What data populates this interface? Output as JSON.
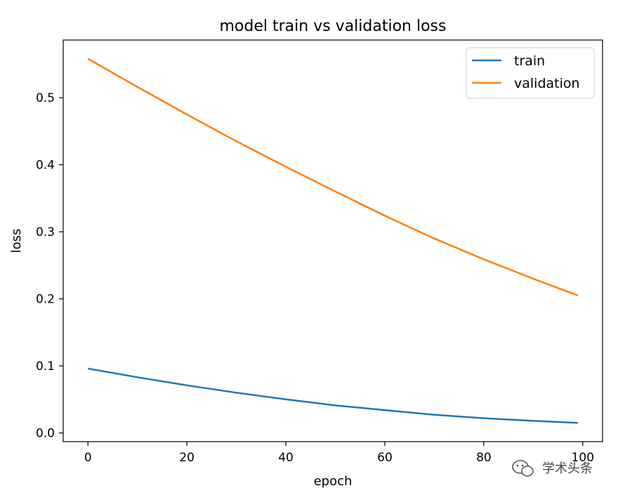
{
  "chart_data": {
    "type": "line",
    "title": "model train vs validation loss",
    "xlabel": "epoch",
    "ylabel": "loss",
    "xlim": [
      -5,
      104
    ],
    "ylim": [
      -0.013,
      0.586
    ],
    "xticks": [
      0,
      20,
      40,
      60,
      80,
      100
    ],
    "yticks": [
      0.0,
      0.1,
      0.2,
      0.3,
      0.4,
      0.5
    ],
    "xtick_labels": [
      "0",
      "20",
      "40",
      "60",
      "80",
      "100"
    ],
    "ytick_labels": [
      "0.0",
      "0.1",
      "0.2",
      "0.3",
      "0.4",
      "0.5"
    ],
    "legend_position": "top-right",
    "grid": false,
    "series": [
      {
        "name": "train",
        "color": "#1f77b4",
        "x": [
          0,
          10,
          20,
          30,
          40,
          50,
          60,
          70,
          80,
          90,
          99
        ],
        "values": [
          0.096,
          0.083,
          0.071,
          0.06,
          0.05,
          0.041,
          0.034,
          0.027,
          0.022,
          0.018,
          0.015
        ]
      },
      {
        "name": "validation",
        "color": "#ff7f0e",
        "x": [
          0,
          10,
          20,
          30,
          40,
          50,
          60,
          70,
          80,
          90,
          99
        ],
        "values": [
          0.558,
          0.516,
          0.475,
          0.435,
          0.397,
          0.36,
          0.324,
          0.29,
          0.259,
          0.23,
          0.205
        ]
      }
    ]
  },
  "watermark": {
    "text": "学术头条",
    "icon": "wechat-icon"
  }
}
